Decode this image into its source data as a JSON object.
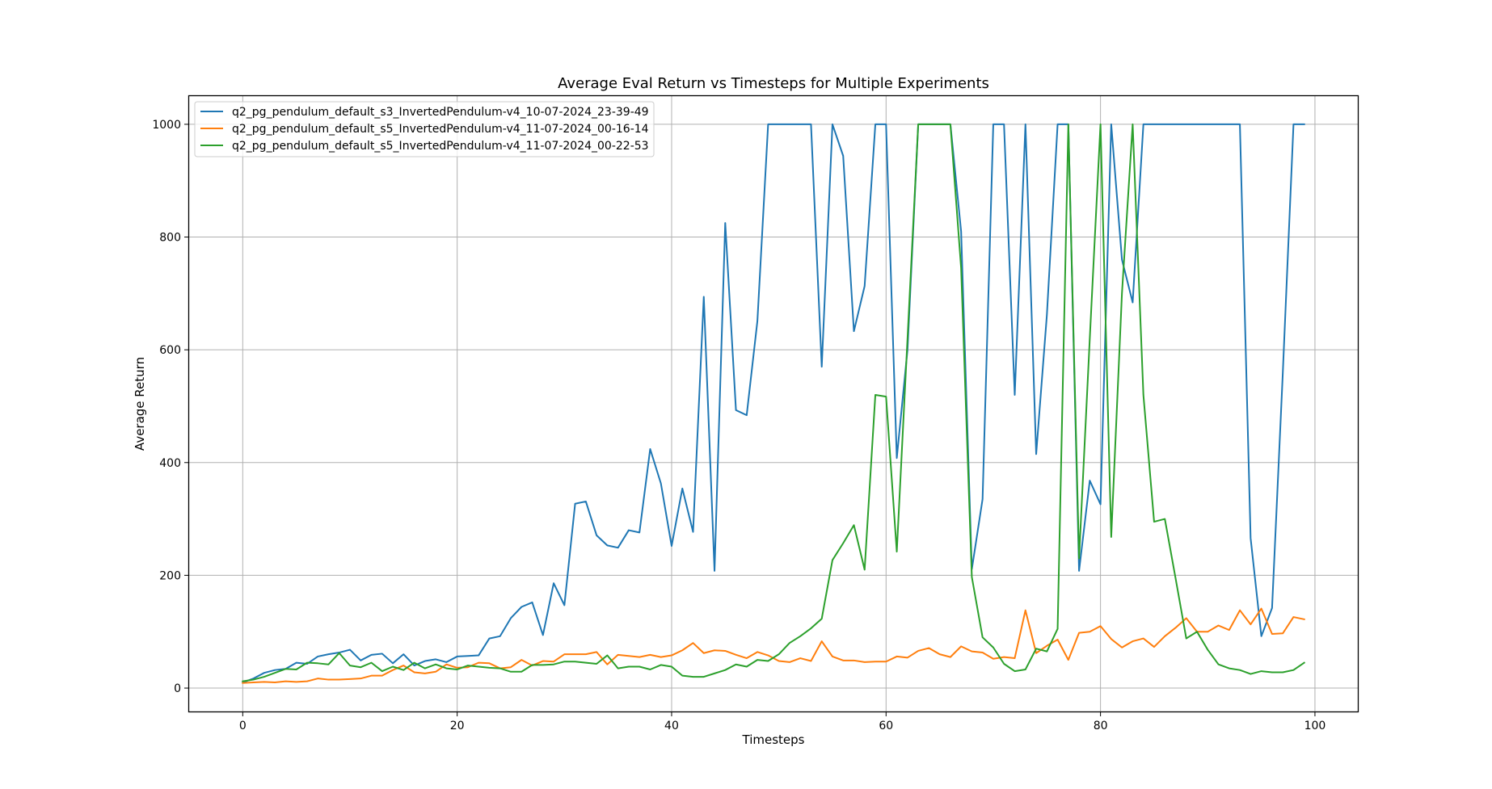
{
  "chart_data": {
    "type": "line",
    "title": "Average Eval Return vs Timesteps for Multiple Experiments",
    "xlabel": "Timesteps",
    "ylabel": "Average Return",
    "xlim": [
      -5,
      104
    ],
    "ylim": [
      -41.5,
      1050
    ],
    "xticks": [
      0,
      20,
      40,
      60,
      80,
      100
    ],
    "yticks": [
      0,
      200,
      400,
      600,
      800,
      1000
    ],
    "grid": true,
    "legend_position": "top-left",
    "x": [
      0,
      1,
      2,
      3,
      4,
      5,
      6,
      7,
      8,
      9,
      10,
      11,
      12,
      13,
      14,
      15,
      16,
      17,
      18,
      19,
      20,
      21,
      22,
      23,
      24,
      25,
      26,
      27,
      28,
      29,
      30,
      31,
      32,
      33,
      34,
      35,
      36,
      37,
      38,
      39,
      40,
      41,
      42,
      43,
      44,
      45,
      46,
      47,
      48,
      49,
      50,
      51,
      52,
      53,
      54,
      55,
      56,
      57,
      58,
      59,
      60,
      61,
      62,
      63,
      64,
      65,
      66,
      67,
      68,
      69,
      70,
      71,
      72,
      73,
      74,
      75,
      76,
      77,
      78,
      79,
      80,
      81,
      82,
      83,
      84,
      85,
      86,
      87,
      88,
      89,
      90,
      91,
      92,
      93,
      94,
      95,
      96,
      97,
      98,
      99
    ],
    "series": [
      {
        "name": "q2_pg_pendulum_default_s3_InvertedPendulum-v4_10-07-2024_23-39-49",
        "color": "#1f77b4",
        "values": [
          10,
          17,
          27,
          32,
          34,
          45,
          43,
          56,
          60,
          63,
          68,
          49,
          59,
          61,
          44,
          60,
          40,
          48,
          51,
          46,
          56,
          57,
          58,
          88,
          92,
          124,
          144,
          152,
          94,
          186,
          147,
          327,
          331,
          271,
          253,
          249,
          280,
          276,
          424,
          363,
          252,
          354,
          277,
          694,
          208,
          825,
          493,
          484,
          651,
          1000,
          1000,
          1000,
          1000,
          1000,
          570,
          1000,
          944,
          633,
          713,
          1000,
          1000,
          408,
          600,
          1000,
          1000,
          1000,
          1000,
          810,
          211,
          335,
          1000,
          1000,
          520,
          1000,
          415,
          662,
          1000,
          1000,
          208,
          368,
          326,
          1000,
          760,
          684,
          1000,
          1000,
          1000,
          1000,
          1000,
          1000,
          1000,
          1000,
          1000,
          1000,
          266,
          92,
          142,
          558,
          1000,
          1000
        ]
      },
      {
        "name": "q2_pg_pendulum_default_s5_InvertedPendulum-v4_11-07-2024_00-16-14",
        "color": "#ff7f0e",
        "values": [
          9,
          10,
          11,
          10,
          12,
          11,
          12,
          17,
          15,
          15,
          16,
          17,
          22,
          22,
          32,
          40,
          28,
          26,
          29,
          42,
          36,
          37,
          45,
          44,
          35,
          37,
          50,
          40,
          48,
          47,
          60,
          60,
          60,
          64,
          42,
          59,
          57,
          55,
          59,
          55,
          58,
          67,
          80,
          62,
          67,
          66,
          59,
          53,
          64,
          58,
          48,
          46,
          53,
          48,
          83,
          56,
          49,
          49,
          46,
          47,
          47,
          56,
          54,
          66,
          71,
          60,
          55,
          74,
          65,
          63,
          52,
          55,
          53,
          138,
          62,
          75,
          86,
          50,
          98,
          100,
          110,
          87,
          72,
          83,
          88,
          73,
          92,
          107,
          124,
          100,
          100,
          111,
          103,
          138,
          113,
          141,
          96,
          97,
          126,
          122
        ]
      },
      {
        "name": "q2_pg_pendulum_default_s5_InvertedPendulum-v4_11-07-2024_00-22-53",
        "color": "#2ca02c",
        "values": [
          12,
          15,
          20,
          27,
          34,
          33,
          45,
          44,
          42,
          62,
          40,
          37,
          45,
          30,
          38,
          32,
          45,
          35,
          42,
          35,
          33,
          40,
          38,
          36,
          35,
          29,
          29,
          41,
          41,
          42,
          47,
          47,
          45,
          43,
          58,
          35,
          38,
          38,
          33,
          41,
          38,
          22,
          20,
          20,
          26,
          32,
          42,
          38,
          50,
          48,
          60,
          80,
          92,
          106,
          123,
          227,
          257,
          289,
          210,
          520,
          517,
          242,
          620,
          1000,
          1000,
          1000,
          1000,
          745,
          197,
          90,
          72,
          43,
          30,
          33,
          70,
          65,
          105,
          1000,
          230,
          620,
          1000,
          268,
          700,
          1000,
          520,
          295,
          300,
          195,
          88,
          100,
          68,
          42,
          35,
          32,
          25,
          30,
          28,
          28,
          32,
          45
        ]
      }
    ]
  }
}
